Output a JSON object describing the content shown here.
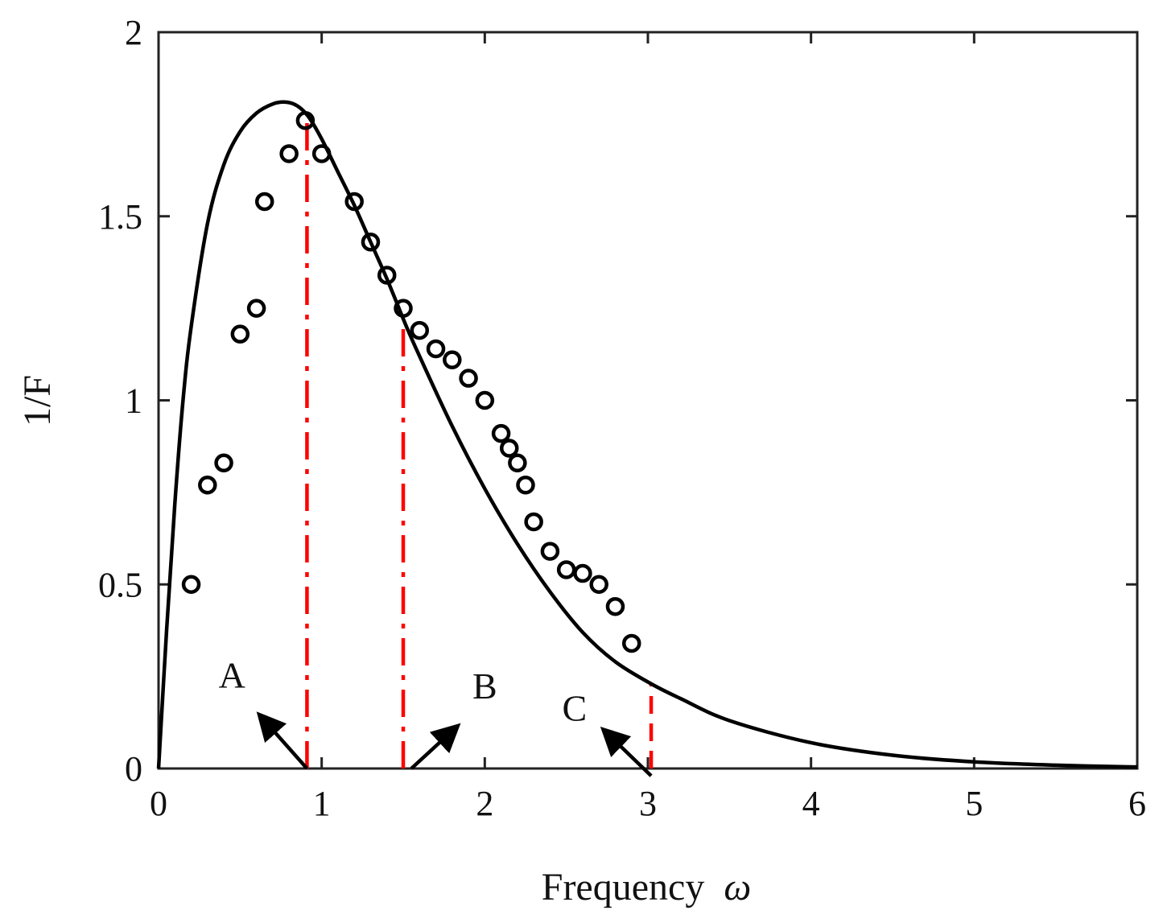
{
  "chart_data": {
    "type": "line",
    "title": "",
    "xlabel": "Frequency",
    "xlabel_symbol": "ω",
    "ylabel": "1/F",
    "xlim": [
      0,
      6
    ],
    "ylim": [
      0,
      2
    ],
    "xticks": [
      0,
      1,
      2,
      3,
      4,
      5,
      6
    ],
    "xtick_labels": [
      "0",
      "1",
      "2",
      "3",
      "4",
      "5",
      "6"
    ],
    "yticks": [
      0,
      0.5,
      1,
      1.5,
      2
    ],
    "ytick_labels": [
      "0",
      "0.5",
      "1",
      "1.5",
      "2"
    ],
    "grid": false,
    "colors": {
      "curve": "#000000",
      "markers": "#000000",
      "markers_fill": "none",
      "vlines": "#ff0000",
      "arrows": "#000000"
    },
    "series": [
      {
        "kind": "line",
        "x": [
          0,
          0.05,
          0.1,
          0.15,
          0.2,
          0.3,
          0.4,
          0.5,
          0.6,
          0.7,
          0.78,
          0.85,
          0.92,
          1.0,
          1.1,
          1.2,
          1.3,
          1.4,
          1.52,
          1.6,
          1.8,
          2.0,
          2.2,
          2.4,
          2.6,
          2.8,
          3.02,
          3.2,
          3.5,
          4.0,
          4.5,
          5.0,
          5.5,
          6.0
        ],
        "y": [
          0,
          0.38,
          0.72,
          1.0,
          1.2,
          1.48,
          1.64,
          1.73,
          1.78,
          1.805,
          1.81,
          1.8,
          1.77,
          1.71,
          1.62,
          1.53,
          1.43,
          1.33,
          1.2,
          1.12,
          0.93,
          0.76,
          0.61,
          0.48,
          0.37,
          0.29,
          0.23,
          0.19,
          0.13,
          0.07,
          0.036,
          0.018,
          0.009,
          0.004
        ]
      },
      {
        "kind": "scatter",
        "x": [
          0.2,
          0.3,
          0.4,
          0.5,
          0.6,
          0.65,
          0.8,
          0.9,
          1.0,
          1.2,
          1.3,
          1.4,
          1.5,
          1.6,
          1.7,
          1.8,
          1.9,
          2.0,
          2.1,
          2.15,
          2.2,
          2.25,
          2.3,
          2.4,
          2.5,
          2.6,
          2.7,
          2.8,
          2.9
        ],
        "y": [
          0.5,
          0.77,
          0.83,
          1.18,
          1.25,
          1.54,
          1.67,
          1.76,
          1.67,
          1.54,
          1.43,
          1.34,
          1.25,
          1.19,
          1.14,
          1.11,
          1.06,
          1.0,
          0.91,
          0.87,
          0.83,
          0.77,
          0.67,
          0.59,
          0.54,
          0.53,
          0.5,
          0.44,
          0.34
        ]
      }
    ],
    "vlines": [
      {
        "x": 0.91,
        "y_top": 1.76,
        "style": "dashdot"
      },
      {
        "x": 1.5,
        "y_top": 1.22,
        "style": "dashdot"
      },
      {
        "x": 3.02,
        "y_top": 0.23,
        "style": "dashed"
      }
    ],
    "annotations": [
      {
        "text": "A",
        "text_x": 0.45,
        "text_y": 0.22,
        "arrow_from": [
          0.91,
          0.0
        ],
        "arrow_to": [
          0.63,
          0.14
        ]
      },
      {
        "text": "B",
        "text_x": 2.0,
        "text_y": 0.19,
        "arrow_from": [
          1.55,
          0.0
        ],
        "arrow_to": [
          1.82,
          0.11
        ]
      },
      {
        "text": "C",
        "text_x": 2.55,
        "text_y": 0.13,
        "arrow_from": [
          3.02,
          -0.02
        ],
        "arrow_to": [
          2.74,
          0.1
        ]
      }
    ]
  }
}
